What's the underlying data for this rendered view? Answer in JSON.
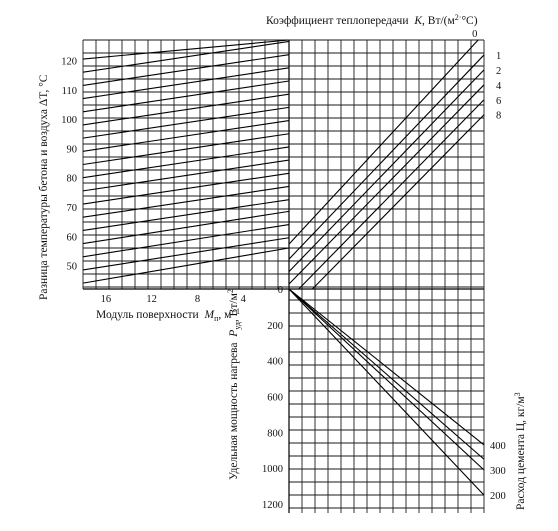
{
  "chart_data": {
    "type": "line",
    "title": "",
    "panels": {
      "upper_left": {
        "xlabel": "Модуль поверхности",
        "xlabel_symbol": "M",
        "xlabel_sub": "п",
        "xlabel_unit": ", м",
        "xlabel_sup": "−1",
        "ylabel": "Разница температуры бетона и воздуха ΔT, °C",
        "xlim": [
          18,
          0
        ],
        "ylim": [
          42,
          127
        ],
        "x_ticks": [
          "16",
          "12",
          "8",
          "4"
        ],
        "y_ticks": [
          "50",
          "60",
          "70",
          "80",
          "90",
          "100",
          "110",
          "120"
        ],
        "lines": [
          {
            "y_at_x18": 44.0,
            "y_at_x0": 56.0
          },
          {
            "y_at_x18": 48.5,
            "y_at_x0": 59.5
          },
          {
            "y_at_x18": 53.0,
            "y_at_x0": 64.0
          },
          {
            "y_at_x18": 57.5,
            "y_at_x0": 68.5
          },
          {
            "y_at_x18": 62.0,
            "y_at_x0": 72.5
          },
          {
            "y_at_x18": 66.5,
            "y_at_x0": 77.0
          },
          {
            "y_at_x18": 71.0,
            "y_at_x0": 81.5
          },
          {
            "y_at_x18": 75.5,
            "y_at_x0": 86.0
          },
          {
            "y_at_x18": 80.0,
            "y_at_x0": 90.5
          },
          {
            "y_at_x18": 84.5,
            "y_at_x0": 95.0
          },
          {
            "y_at_x18": 89.0,
            "y_at_x0": 99.5
          },
          {
            "y_at_x18": 93.5,
            "y_at_x0": 104.0
          },
          {
            "y_at_x18": 98.0,
            "y_at_x0": 108.5
          },
          {
            "y_at_x18": 102.5,
            "y_at_x0": 113.0
          },
          {
            "y_at_x18": 107.0,
            "y_at_x0": 117.5
          },
          {
            "y_at_x18": 111.5,
            "y_at_x0": 122.0
          },
          {
            "y_at_x18": 116.0,
            "y_at_x0": 126.5
          },
          {
            "y_at_x18": 120.5,
            "y_at_x0": 127.0
          }
        ]
      },
      "upper_right": {
        "xlabel": "Коэффициент теплопередачи",
        "xlabel_symbol": "K",
        "xlabel_unit": ", Вт/(м",
        "xlabel_sup": "2·",
        "xlabel_tail": "°C)",
        "series": [
          {
            "name": "0",
            "start": [
              0.0,
              0.18
            ],
            "end": [
              0.97,
              1.0
            ]
          },
          {
            "name": "1",
            "start": [
              0.0,
              0.12
            ],
            "end": [
              1.0,
              0.94
            ]
          },
          {
            "name": "2",
            "start": [
              0.0,
              0.07
            ],
            "end": [
              1.0,
              0.88
            ]
          },
          {
            "name": "4",
            "start": [
              0.0,
              0.02
            ],
            "end": [
              1.0,
              0.82
            ]
          },
          {
            "name": "6",
            "start": [
              0.05,
              0.0
            ],
            "end": [
              1.0,
              0.76
            ]
          },
          {
            "name": "8",
            "start": [
              0.12,
              0.0
            ],
            "end": [
              1.0,
              0.7
            ]
          }
        ]
      },
      "lower_right": {
        "ylabel": "Удельная мощность нагрева",
        "ylabel_symbol": "P",
        "ylabel_sub": "уд",
        "ylabel_unit": ", Вт/м",
        "ylabel_sup": "2",
        "ylim": [
          0,
          1250
        ],
        "y_ticks": [
          "0",
          "200",
          "400",
          "600",
          "800",
          "1000",
          "1200"
        ],
        "right_label": "Расход цемента Ц, кг/м",
        "right_label_sup": "3",
        "series": [
          {
            "name": "400",
            "x_end": 1.0,
            "y_end": 870
          },
          {
            "name": "300",
            "x_end": 1.0,
            "y_end": 1010
          },
          {
            "name": "200",
            "x_end": 1.0,
            "y_end": 1150
          }
        ],
        "extra_line": {
          "x_end": 1.0,
          "y_end": 950
        }
      }
    }
  }
}
